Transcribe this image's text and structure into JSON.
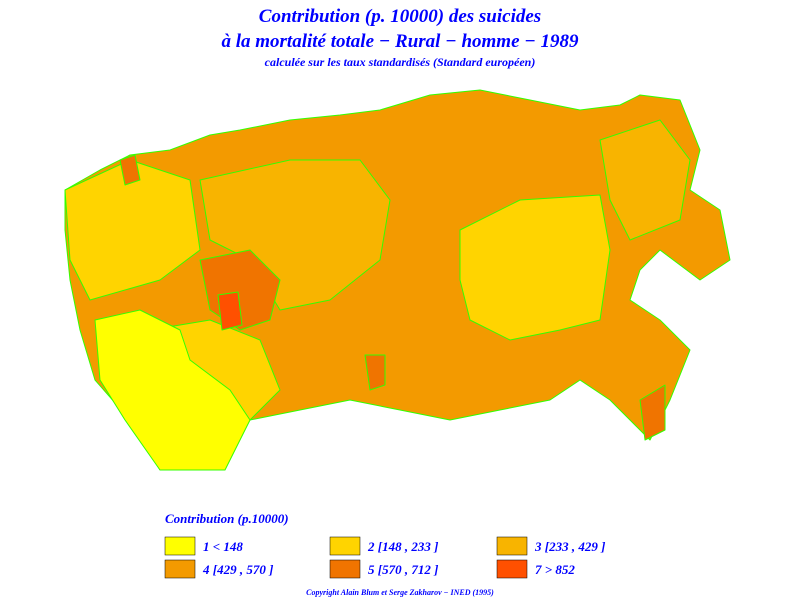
{
  "header": {
    "title_line1": "Contribution (p. 10000) des suicides",
    "title_line2": "à la mortalité totale − Rural − homme − 1989",
    "subtitle": "calculée sur les taux standardisés (Standard européen)"
  },
  "legend": {
    "title": "Contribution (p.10000)",
    "items": [
      {
        "label": "1 < 148",
        "color": "#ffff00"
      },
      {
        "label": "2 [148 , 233 ]",
        "color": "#ffd400"
      },
      {
        "label": "3 [233 , 429 ]",
        "color": "#f8b400"
      },
      {
        "label": "4 [429 , 570 ]",
        "color": "#f39a00"
      },
      {
        "label": "5 [570 , 712 ]",
        "color": "#f07400"
      },
      {
        "label": "7 > 852",
        "color": "#ff5000"
      }
    ]
  },
  "footer": {
    "copyright": "Copyright Alain Blum et Serge Zakharov − INED (1995)"
  }
}
